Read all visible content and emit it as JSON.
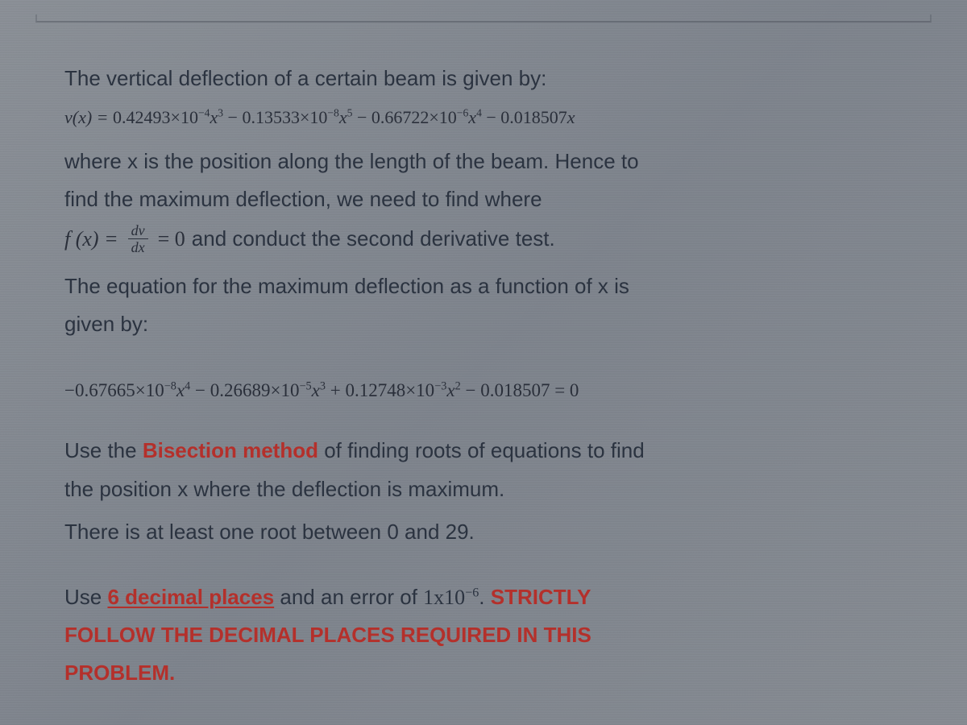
{
  "colors": {
    "text": "#2b3340",
    "equation": "#2a2f3a",
    "highlight_red": "#b4302b",
    "background_approx": "#868b92"
  },
  "typography": {
    "body_family": "Segoe UI / Helvetica Neue / Arial",
    "body_size_pt": 20,
    "equation_family": "Cambria Math / Times New Roman (serif)",
    "equation_size_pt": 17
  },
  "p1": "The vertical deflection of a certain beam is given by:",
  "eq1": {
    "lhs": "v(x) = ",
    "terms": [
      {
        "sign": "",
        "coef": "0.42493",
        "exp10": "−4",
        "power": "3"
      },
      {
        "sign": "−",
        "coef": "0.13533",
        "exp10": "−8",
        "power": "5"
      },
      {
        "sign": "−",
        "coef": "0.66722",
        "exp10": "−6",
        "power": "4"
      },
      {
        "sign": "−",
        "coef": "0.018507",
        "exp10": null,
        "power": "1"
      }
    ]
  },
  "p2a": "where x is the position along the length of the beam. Hence to",
  "p2b": "find the maximum deflection, we need to find where",
  "fx": {
    "prefix": "f (x) = ",
    "frac_num": "dv",
    "frac_den": "dx",
    "mid": " = 0 ",
    "suffix": "and conduct the second derivative test."
  },
  "p3a": "The equation for the maximum deflection as a function of x is",
  "p3b": "given by:",
  "eq2": {
    "terms": [
      {
        "sign": "−",
        "coef": "0.67665",
        "exp10": "−8",
        "power": "4"
      },
      {
        "sign": "−",
        "coef": "0.26689",
        "exp10": "−5",
        "power": "3"
      },
      {
        "sign": "+",
        "coef": "0.12748",
        "exp10": "−3",
        "power": "2"
      },
      {
        "sign": "−",
        "coef": "0.018507",
        "exp10": null,
        "power": null
      }
    ],
    "rhs": " = 0"
  },
  "p4_pre": "Use the ",
  "p4_red": "Bisection method",
  "p4_post": " of finding roots of equations to find",
  "p4b": "the position x where the deflection is maximum.",
  "p5": "There is at least one root between 0 and 29.",
  "p6_pre": "Use ",
  "p6_ul": "6 decimal places",
  "p6_mid": " and an error of  ",
  "p6_err_base": "1x10",
  "p6_err_exp": "−6",
  "p6_post": ". ",
  "p6_red1": "STRICTLY",
  "p6_red2": "FOLLOW THE DECIMAL PLACES REQUIRED IN THIS",
  "p6_red3": "PROBLEM."
}
